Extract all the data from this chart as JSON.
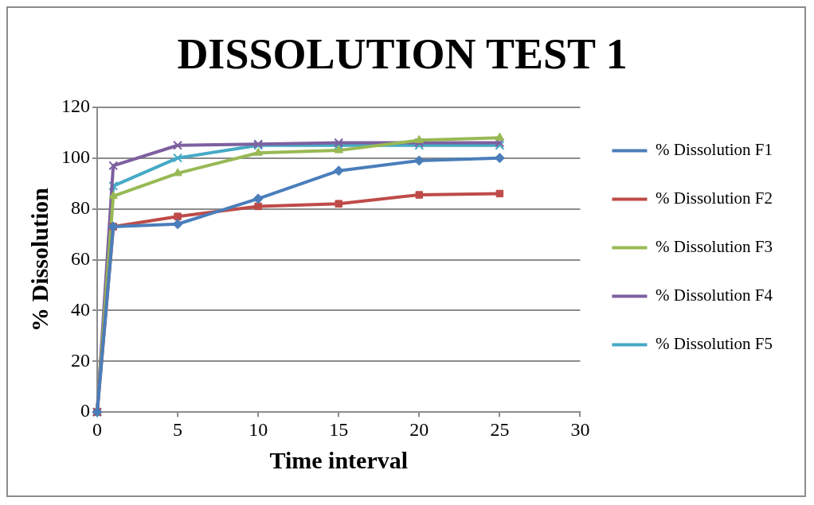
{
  "chart_data": {
    "type": "line",
    "title": "DISSOLUTION TEST 1",
    "xlabel": "Time interval",
    "ylabel": "% Dissolution",
    "x": [
      0,
      1,
      5,
      10,
      15,
      20,
      25
    ],
    "series": [
      {
        "name": "% Dissolution F1",
        "color": "#4a7ebb",
        "marker": "diamond",
        "values": [
          0,
          73,
          74,
          84,
          95,
          99,
          100
        ]
      },
      {
        "name": "% Dissolution F2",
        "color": "#be4b48",
        "marker": "square",
        "values": [
          0,
          73,
          77,
          81,
          82,
          85.5,
          86
        ]
      },
      {
        "name": "% Dissolution F3",
        "color": "#98b954",
        "marker": "triangle",
        "values": [
          0,
          85,
          94,
          102,
          103,
          107,
          108
        ]
      },
      {
        "name": "% Dissolution F4",
        "color": "#7d60a0",
        "marker": "cross",
        "values": [
          0,
          97,
          105,
          105.5,
          106,
          106,
          106
        ]
      },
      {
        "name": "% Dissolution F5",
        "color": "#46aac5",
        "marker": "cross",
        "values": [
          0,
          89,
          100,
          105,
          105,
          105,
          105
        ]
      }
    ],
    "xlim": [
      0,
      30
    ],
    "xticks": [
      0,
      5,
      10,
      15,
      20,
      25,
      30
    ],
    "ylim": [
      0,
      120
    ],
    "yticks": [
      0,
      20,
      40,
      60,
      80,
      100,
      120
    ],
    "grid": "y",
    "legend": "right"
  }
}
